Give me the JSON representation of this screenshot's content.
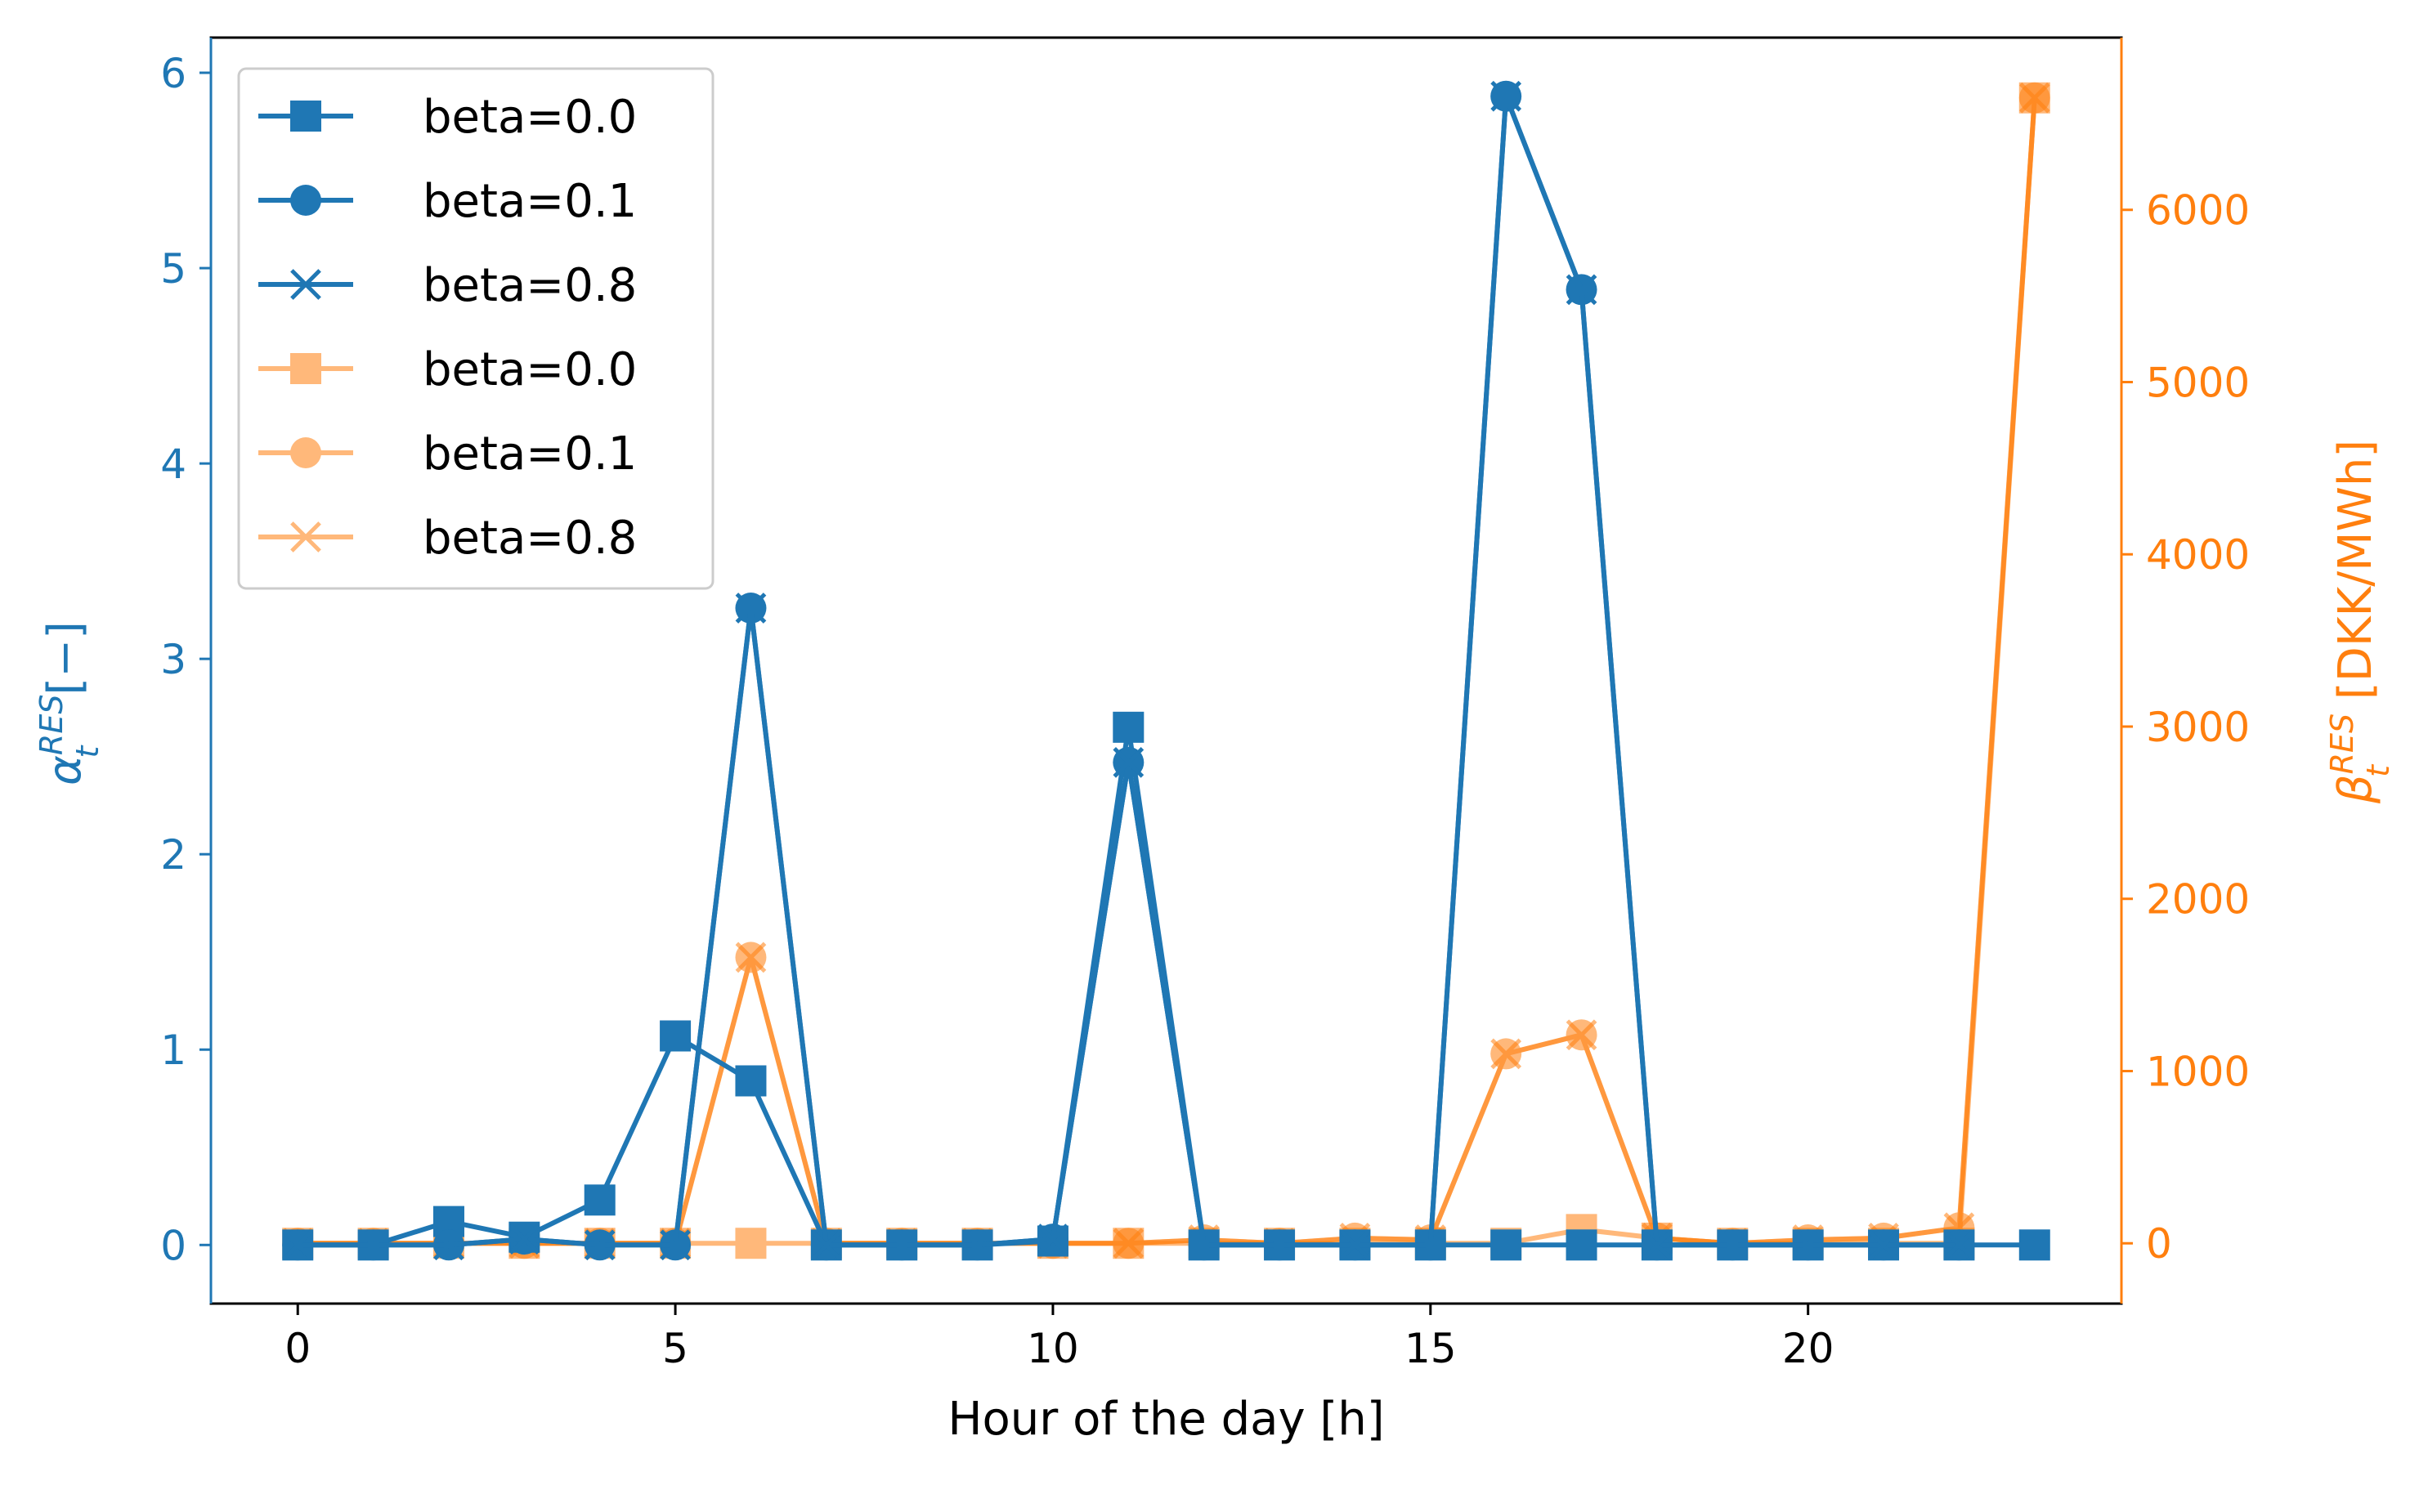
{
  "chart_data": {
    "type": "line",
    "xlabel": "Hour of the day [h]",
    "ylabel_left": {
      "symbol": "α",
      "sub": "t",
      "sup": "RES",
      "unit": "[−]"
    },
    "ylabel_right": {
      "symbol": "β",
      "sub": "t",
      "sup": "RES",
      "unit": " [DKK/MWh]"
    },
    "x": [
      0,
      1,
      2,
      3,
      4,
      5,
      6,
      7,
      8,
      9,
      10,
      11,
      12,
      13,
      14,
      15,
      16,
      17,
      18,
      19,
      20,
      21,
      22,
      23
    ],
    "xlim": [
      -1.15,
      24.15
    ],
    "xticks": [
      0,
      5,
      10,
      15,
      20
    ],
    "ylim_left": [
      -0.3,
      6.18
    ],
    "yticks_left": [
      0,
      1,
      2,
      3,
      4,
      5,
      6
    ],
    "ylim_right": [
      -350,
      7000
    ],
    "yticks_right": [
      0,
      1000,
      2000,
      3000,
      4000,
      5000,
      6000
    ],
    "grid": false,
    "legend_placement": "top-left",
    "colors": {
      "left": "#1f77b4",
      "right": "#ff7f0e"
    },
    "series": [
      {
        "name": "beta=0.0",
        "axis": "left",
        "marker": "square",
        "opacity": 1,
        "values": [
          0,
          0,
          0.12,
          0.04,
          0.23,
          1.07,
          0.84,
          0,
          0,
          0,
          0.02,
          2.65,
          0,
          0,
          0,
          0,
          0,
          0,
          0,
          0,
          0,
          0,
          0,
          0
        ]
      },
      {
        "name": "beta=0.1",
        "axis": "left",
        "marker": "circle",
        "opacity": 1,
        "values": [
          0,
          0,
          0,
          0.03,
          0,
          0,
          3.26,
          0,
          0,
          0,
          0.03,
          2.47,
          0,
          0,
          0,
          0,
          5.88,
          4.89,
          0,
          0,
          0,
          0,
          0,
          null
        ]
      },
      {
        "name": "beta=0.8",
        "axis": "left",
        "marker": "x",
        "opacity": 1,
        "values": [
          0,
          0,
          0,
          0.03,
          0,
          0,
          3.26,
          0,
          0,
          0,
          0.03,
          2.47,
          0,
          0,
          0,
          0,
          5.88,
          4.89,
          0,
          0,
          0,
          0,
          0,
          null
        ]
      },
      {
        "name": "beta=0.0",
        "axis": "right",
        "marker": "square",
        "opacity": 0.55,
        "values": [
          0,
          0,
          0,
          0,
          0,
          0,
          0,
          0,
          0,
          0,
          0,
          0,
          0,
          0,
          0,
          0,
          0,
          80,
          30,
          0,
          0,
          0,
          0,
          6650
        ]
      },
      {
        "name": "beta=0.1",
        "axis": "right",
        "marker": "circle",
        "opacity": 0.55,
        "values": [
          0,
          0,
          0,
          0,
          0,
          0,
          1660,
          0,
          0,
          0,
          0,
          0,
          20,
          0,
          30,
          20,
          1100,
          1210,
          30,
          0,
          20,
          30,
          90,
          6650
        ]
      },
      {
        "name": "beta=0.8",
        "axis": "right",
        "marker": "x",
        "opacity": 0.55,
        "values": [
          0,
          0,
          0,
          0,
          0,
          0,
          1660,
          0,
          0,
          0,
          0,
          0,
          20,
          0,
          30,
          20,
          1100,
          1210,
          30,
          0,
          20,
          30,
          90,
          6650
        ]
      }
    ]
  }
}
